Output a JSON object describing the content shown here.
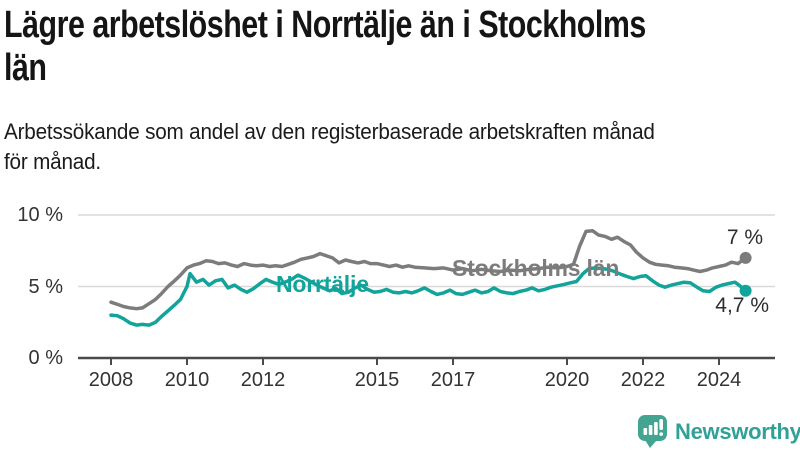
{
  "header": {
    "title_lines": [
      "Lägre arbetslöshet i Norrtälje än i Stockholms",
      "län"
    ],
    "subtitle_lines": [
      "Arbetssökande som andel av den registerbaserade arbetskraften månad",
      "för månad."
    ]
  },
  "footer": {
    "brand": "Newsworthy",
    "logo_icon": "bar-chart-speech-bubble-icon"
  },
  "colors": {
    "norrtalje_teal": "#12a39a",
    "stockholm_gray": "#7c7c7c",
    "axis": "#4a4a4a",
    "gridline": "#d9d9d9",
    "tick_label": "#333333",
    "title_text": "#151515",
    "end_label_text": "#2d2d2d",
    "logo_badge": "#43a491",
    "logo_text": "#31a098"
  },
  "chart_data": {
    "type": "line",
    "title": "Lägre arbetslöshet i Norrtälje än i Stockholms län",
    "subtitle": "Arbetssökande som andel av den registerbaserade arbetskraften månad för månad.",
    "xlabel": "",
    "ylabel": "",
    "unit": "%",
    "grid": true,
    "legend_position": "inline-labels",
    "x_axis": {
      "min": 2008,
      "max": 2025.4,
      "ticks": [
        {
          "value": 2008,
          "label": "2008"
        },
        {
          "value": 2010,
          "label": "2010"
        },
        {
          "value": 2012,
          "label": "2012"
        },
        {
          "value": 2015,
          "label": "2015"
        },
        {
          "value": 2017,
          "label": "2017"
        },
        {
          "value": 2020,
          "label": "2020"
        },
        {
          "value": 2022,
          "label": "2022"
        },
        {
          "value": 2024,
          "label": "2024"
        }
      ]
    },
    "y_axis": {
      "min": 0,
      "max": 10,
      "ticks": [
        {
          "value": 10,
          "label": "10 %"
        },
        {
          "value": 5,
          "label": "5 %"
        },
        {
          "value": 0,
          "label": "0 %"
        }
      ]
    },
    "series": [
      {
        "name": "Stockholms län",
        "color": "#7c7c7c",
        "end_label": "7 %",
        "end_value": 7.0,
        "points": [
          [
            2008.0,
            3.9
          ],
          [
            2008.17,
            3.75
          ],
          [
            2008.33,
            3.6
          ],
          [
            2008.5,
            3.5
          ],
          [
            2008.67,
            3.45
          ],
          [
            2008.83,
            3.5
          ],
          [
            2009.0,
            3.8
          ],
          [
            2009.17,
            4.1
          ],
          [
            2009.33,
            4.5
          ],
          [
            2009.5,
            5.0
          ],
          [
            2009.67,
            5.4
          ],
          [
            2009.83,
            5.8
          ],
          [
            2010.0,
            6.3
          ],
          [
            2010.17,
            6.5
          ],
          [
            2010.33,
            6.6
          ],
          [
            2010.5,
            6.8
          ],
          [
            2010.67,
            6.75
          ],
          [
            2010.83,
            6.6
          ],
          [
            2011.0,
            6.65
          ],
          [
            2011.17,
            6.5
          ],
          [
            2011.33,
            6.4
          ],
          [
            2011.5,
            6.6
          ],
          [
            2011.67,
            6.5
          ],
          [
            2011.83,
            6.45
          ],
          [
            2012.0,
            6.5
          ],
          [
            2012.17,
            6.4
          ],
          [
            2012.33,
            6.45
          ],
          [
            2012.5,
            6.4
          ],
          [
            2012.67,
            6.55
          ],
          [
            2012.83,
            6.7
          ],
          [
            2013.0,
            6.9
          ],
          [
            2013.17,
            7.0
          ],
          [
            2013.33,
            7.1
          ],
          [
            2013.5,
            7.3
          ],
          [
            2013.67,
            7.15
          ],
          [
            2013.83,
            7.0
          ],
          [
            2014.0,
            6.65
          ],
          [
            2014.17,
            6.85
          ],
          [
            2014.33,
            6.75
          ],
          [
            2014.5,
            6.65
          ],
          [
            2014.67,
            6.75
          ],
          [
            2014.83,
            6.6
          ],
          [
            2015.0,
            6.6
          ],
          [
            2015.17,
            6.5
          ],
          [
            2015.33,
            6.4
          ],
          [
            2015.5,
            6.5
          ],
          [
            2015.67,
            6.35
          ],
          [
            2015.83,
            6.45
          ],
          [
            2016.0,
            6.35
          ],
          [
            2016.25,
            6.3
          ],
          [
            2016.5,
            6.25
          ],
          [
            2016.75,
            6.3
          ],
          [
            2017.0,
            6.15
          ],
          [
            2017.25,
            6.25
          ],
          [
            2017.5,
            6.1
          ],
          [
            2017.75,
            6.2
          ],
          [
            2018.0,
            6.1
          ],
          [
            2018.25,
            6.05
          ],
          [
            2018.5,
            6.15
          ],
          [
            2018.75,
            6.1
          ],
          [
            2019.0,
            6.2
          ],
          [
            2019.25,
            6.25
          ],
          [
            2019.5,
            6.35
          ],
          [
            2019.75,
            6.3
          ],
          [
            2020.0,
            6.4
          ],
          [
            2020.17,
            6.55
          ],
          [
            2020.33,
            7.8
          ],
          [
            2020.5,
            8.85
          ],
          [
            2020.67,
            8.9
          ],
          [
            2020.83,
            8.6
          ],
          [
            2021.0,
            8.5
          ],
          [
            2021.17,
            8.3
          ],
          [
            2021.33,
            8.45
          ],
          [
            2021.5,
            8.15
          ],
          [
            2021.67,
            7.9
          ],
          [
            2021.83,
            7.4
          ],
          [
            2022.0,
            7.0
          ],
          [
            2022.17,
            6.7
          ],
          [
            2022.33,
            6.55
          ],
          [
            2022.5,
            6.5
          ],
          [
            2022.67,
            6.45
          ],
          [
            2022.83,
            6.35
          ],
          [
            2023.0,
            6.3
          ],
          [
            2023.17,
            6.25
          ],
          [
            2023.33,
            6.15
          ],
          [
            2023.5,
            6.05
          ],
          [
            2023.67,
            6.15
          ],
          [
            2023.83,
            6.3
          ],
          [
            2024.0,
            6.4
          ],
          [
            2024.17,
            6.5
          ],
          [
            2024.33,
            6.7
          ],
          [
            2024.5,
            6.6
          ],
          [
            2024.7,
            7.0
          ]
        ]
      },
      {
        "name": "Norrtälje",
        "color": "#12a39a",
        "end_label": "4,7 %",
        "end_value": 4.7,
        "points": [
          [
            2008.0,
            3.0
          ],
          [
            2008.17,
            2.95
          ],
          [
            2008.33,
            2.75
          ],
          [
            2008.5,
            2.45
          ],
          [
            2008.67,
            2.3
          ],
          [
            2008.83,
            2.35
          ],
          [
            2009.0,
            2.3
          ],
          [
            2009.17,
            2.5
          ],
          [
            2009.33,
            2.9
          ],
          [
            2009.5,
            3.3
          ],
          [
            2009.67,
            3.7
          ],
          [
            2009.83,
            4.1
          ],
          [
            2010.0,
            5.0
          ],
          [
            2010.08,
            5.9
          ],
          [
            2010.25,
            5.3
          ],
          [
            2010.42,
            5.5
          ],
          [
            2010.58,
            5.1
          ],
          [
            2010.75,
            5.4
          ],
          [
            2010.92,
            5.5
          ],
          [
            2011.08,
            4.9
          ],
          [
            2011.25,
            5.1
          ],
          [
            2011.42,
            4.8
          ],
          [
            2011.58,
            4.6
          ],
          [
            2011.75,
            4.85
          ],
          [
            2011.92,
            5.2
          ],
          [
            2012.08,
            5.5
          ],
          [
            2012.25,
            5.3
          ],
          [
            2012.42,
            5.15
          ],
          [
            2012.58,
            5.3
          ],
          [
            2012.75,
            5.5
          ],
          [
            2012.92,
            5.8
          ],
          [
            2013.08,
            5.6
          ],
          [
            2013.25,
            5.35
          ],
          [
            2013.42,
            5.1
          ],
          [
            2013.58,
            4.9
          ],
          [
            2013.75,
            4.7
          ],
          [
            2013.92,
            4.85
          ],
          [
            2014.08,
            4.5
          ],
          [
            2014.25,
            4.6
          ],
          [
            2014.42,
            4.9
          ],
          [
            2014.58,
            5.1
          ],
          [
            2014.75,
            4.8
          ],
          [
            2014.92,
            4.6
          ],
          [
            2015.08,
            4.65
          ],
          [
            2015.25,
            4.8
          ],
          [
            2015.42,
            4.6
          ],
          [
            2015.58,
            4.55
          ],
          [
            2015.75,
            4.65
          ],
          [
            2015.92,
            4.55
          ],
          [
            2016.08,
            4.7
          ],
          [
            2016.25,
            4.9
          ],
          [
            2016.42,
            4.65
          ],
          [
            2016.58,
            4.45
          ],
          [
            2016.75,
            4.55
          ],
          [
            2016.92,
            4.75
          ],
          [
            2017.08,
            4.5
          ],
          [
            2017.25,
            4.45
          ],
          [
            2017.42,
            4.6
          ],
          [
            2017.58,
            4.75
          ],
          [
            2017.75,
            4.55
          ],
          [
            2017.92,
            4.65
          ],
          [
            2018.08,
            4.9
          ],
          [
            2018.25,
            4.65
          ],
          [
            2018.42,
            4.55
          ],
          [
            2018.58,
            4.5
          ],
          [
            2018.75,
            4.65
          ],
          [
            2018.92,
            4.75
          ],
          [
            2019.08,
            4.9
          ],
          [
            2019.25,
            4.7
          ],
          [
            2019.42,
            4.8
          ],
          [
            2019.58,
            4.95
          ],
          [
            2019.75,
            5.05
          ],
          [
            2019.92,
            5.15
          ],
          [
            2020.08,
            5.25
          ],
          [
            2020.25,
            5.35
          ],
          [
            2020.42,
            5.9
          ],
          [
            2020.58,
            6.25
          ],
          [
            2020.75,
            6.3
          ],
          [
            2020.92,
            6.25
          ],
          [
            2021.08,
            6.2
          ],
          [
            2021.25,
            6.05
          ],
          [
            2021.42,
            5.85
          ],
          [
            2021.58,
            5.7
          ],
          [
            2021.75,
            5.55
          ],
          [
            2021.92,
            5.7
          ],
          [
            2022.08,
            5.75
          ],
          [
            2022.25,
            5.4
          ],
          [
            2022.42,
            5.1
          ],
          [
            2022.58,
            4.95
          ],
          [
            2022.75,
            5.1
          ],
          [
            2022.92,
            5.2
          ],
          [
            2023.08,
            5.3
          ],
          [
            2023.25,
            5.25
          ],
          [
            2023.42,
            4.95
          ],
          [
            2023.58,
            4.7
          ],
          [
            2023.75,
            4.65
          ],
          [
            2023.92,
            4.95
          ],
          [
            2024.08,
            5.1
          ],
          [
            2024.25,
            5.2
          ],
          [
            2024.42,
            5.3
          ],
          [
            2024.55,
            5.05
          ],
          [
            2024.7,
            4.7
          ]
        ]
      }
    ]
  }
}
